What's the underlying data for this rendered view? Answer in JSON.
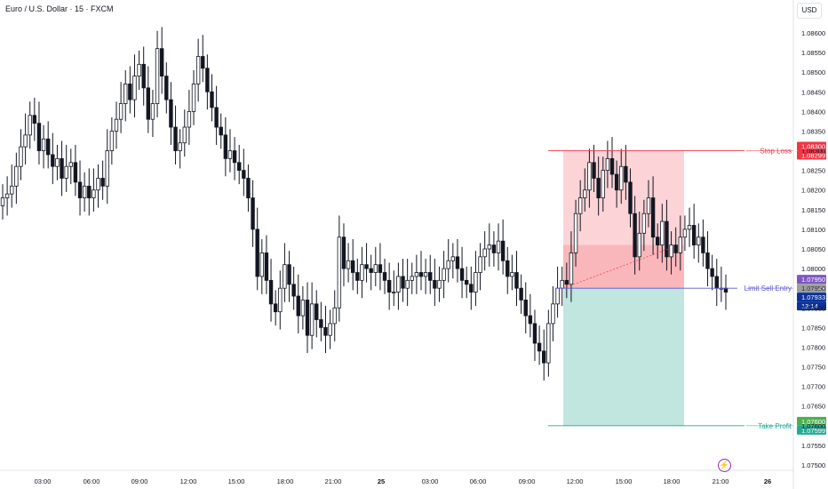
{
  "header": {
    "title": "Euro / U.S. Dollar · 15 · FXCM",
    "currency": "USD"
  },
  "colors": {
    "up": "#ffffff",
    "down": "#131722",
    "stop": "#f23645",
    "target": "#089981",
    "entry": "#5b57d8",
    "current": "#0c3299",
    "accent": "#9c27b0"
  },
  "chart_data": {
    "type": "candlestick",
    "title": "Euro / U.S. Dollar · 15 · FXCM",
    "ylim": [
      1.0747,
      1.0863
    ],
    "y_ticks": [
      "1.08600",
      "1.08550",
      "1.08500",
      "1.08450",
      "1.08400",
      "1.08350",
      "1.08300",
      "1.08250",
      "1.08200",
      "1.08150",
      "1.08100",
      "1.08050",
      "1.08000",
      "1.07950",
      "1.07900",
      "1.07850",
      "1.07800",
      "1.07750",
      "1.07700",
      "1.07650",
      "1.07600",
      "1.07550",
      "1.07500"
    ],
    "x_ticks": [
      {
        "label": "03:00",
        "bold": false
      },
      {
        "label": "06:00",
        "bold": false
      },
      {
        "label": "09:00",
        "bold": false
      },
      {
        "label": "12:00",
        "bold": false
      },
      {
        "label": "15:00",
        "bold": false
      },
      {
        "label": "18:00",
        "bold": false
      },
      {
        "label": "21:00",
        "bold": false
      },
      {
        "label": "25",
        "bold": true
      },
      {
        "label": "03:00",
        "bold": false
      },
      {
        "label": "06:00",
        "bold": false
      },
      {
        "label": "09:00",
        "bold": false
      },
      {
        "label": "12:00",
        "bold": false
      },
      {
        "label": "15:00",
        "bold": false
      },
      {
        "label": "18:00",
        "bold": false
      },
      {
        "label": "21:00",
        "bold": false
      },
      {
        "label": "26",
        "bold": true
      }
    ],
    "closes": [
      1.0818,
      1.0819,
      1.0821,
      1.0826,
      1.0831,
      1.0834,
      1.0839,
      1.0837,
      1.083,
      1.0833,
      1.0829,
      1.0826,
      1.0828,
      1.0823,
      1.0826,
      1.0827,
      1.0822,
      1.0818,
      1.0821,
      1.0818,
      1.082,
      1.0823,
      1.0821,
      1.083,
      1.0835,
      1.0838,
      1.0842,
      1.0847,
      1.0843,
      1.0849,
      1.0852,
      1.0846,
      1.0838,
      1.0842,
      1.0856,
      1.0849,
      1.0843,
      1.0836,
      1.083,
      1.0832,
      1.0836,
      1.084,
      1.0847,
      1.0854,
      1.0851,
      1.0845,
      1.0841,
      1.0836,
      1.0834,
      1.0828,
      1.083,
      1.0827,
      1.0825,
      1.0823,
      1.0818,
      1.081,
      1.0798,
      1.0804,
      1.0797,
      1.0791,
      1.0789,
      1.0795,
      1.0801,
      1.0796,
      1.0793,
      1.0788,
      1.0792,
      1.0783,
      1.0791,
      1.0787,
      1.0785,
      1.0783,
      1.0786,
      1.079,
      1.0808,
      1.08,
      1.0802,
      1.0799,
      1.0797,
      1.0801,
      1.08,
      1.0799,
      1.0801,
      1.0799,
      1.0797,
      1.0794,
      1.0794,
      1.0798,
      1.0795,
      1.0797,
      1.0798,
      1.0799,
      1.0798,
      1.0799,
      1.0797,
      1.0795,
      1.0797,
      1.08,
      1.0802,
      1.0803,
      1.08,
      1.0797,
      1.0796,
      1.0794,
      1.0799,
      1.0803,
      1.0805,
      1.0806,
      1.0804,
      1.0807,
      1.0802,
      1.0798,
      1.0799,
      1.0795,
      1.0792,
      1.0788,
      1.0786,
      1.0781,
      1.0779,
      1.0776,
      1.0786,
      1.0791,
      1.0795,
      1.0797,
      1.0796,
      1.0804,
      1.0814,
      1.0818,
      1.082,
      1.0827,
      1.0823,
      1.0818,
      1.0825,
      1.0828,
      1.0824,
      1.082,
      1.0826,
      1.0822,
      1.0814,
      1.0803,
      1.0809,
      1.0814,
      1.0818,
      1.0808,
      1.0806,
      1.0812,
      1.0803,
      1.0806,
      1.0804,
      1.0808,
      1.081,
      1.0811,
      1.0806,
      1.0808,
      1.0804,
      1.08,
      1.0798,
      1.0795,
      1.0795,
      1.0794
    ],
    "price_levels": {
      "stop_loss": {
        "label": "Stop Loss",
        "price": 1.083,
        "tags": [
          "1.08300",
          "1.08299"
        ]
      },
      "entry": {
        "label": "Limit Sell Entry",
        "price": 1.0795,
        "tags": [
          "1.07950",
          "1.07949"
        ]
      },
      "current": {
        "price": 1.07933,
        "tags": [
          "1.07933",
          "13:14"
        ]
      },
      "take_profit": {
        "label": "Take Profit",
        "price": 1.076,
        "tags": [
          "1.07600",
          "1.07599"
        ]
      }
    }
  }
}
